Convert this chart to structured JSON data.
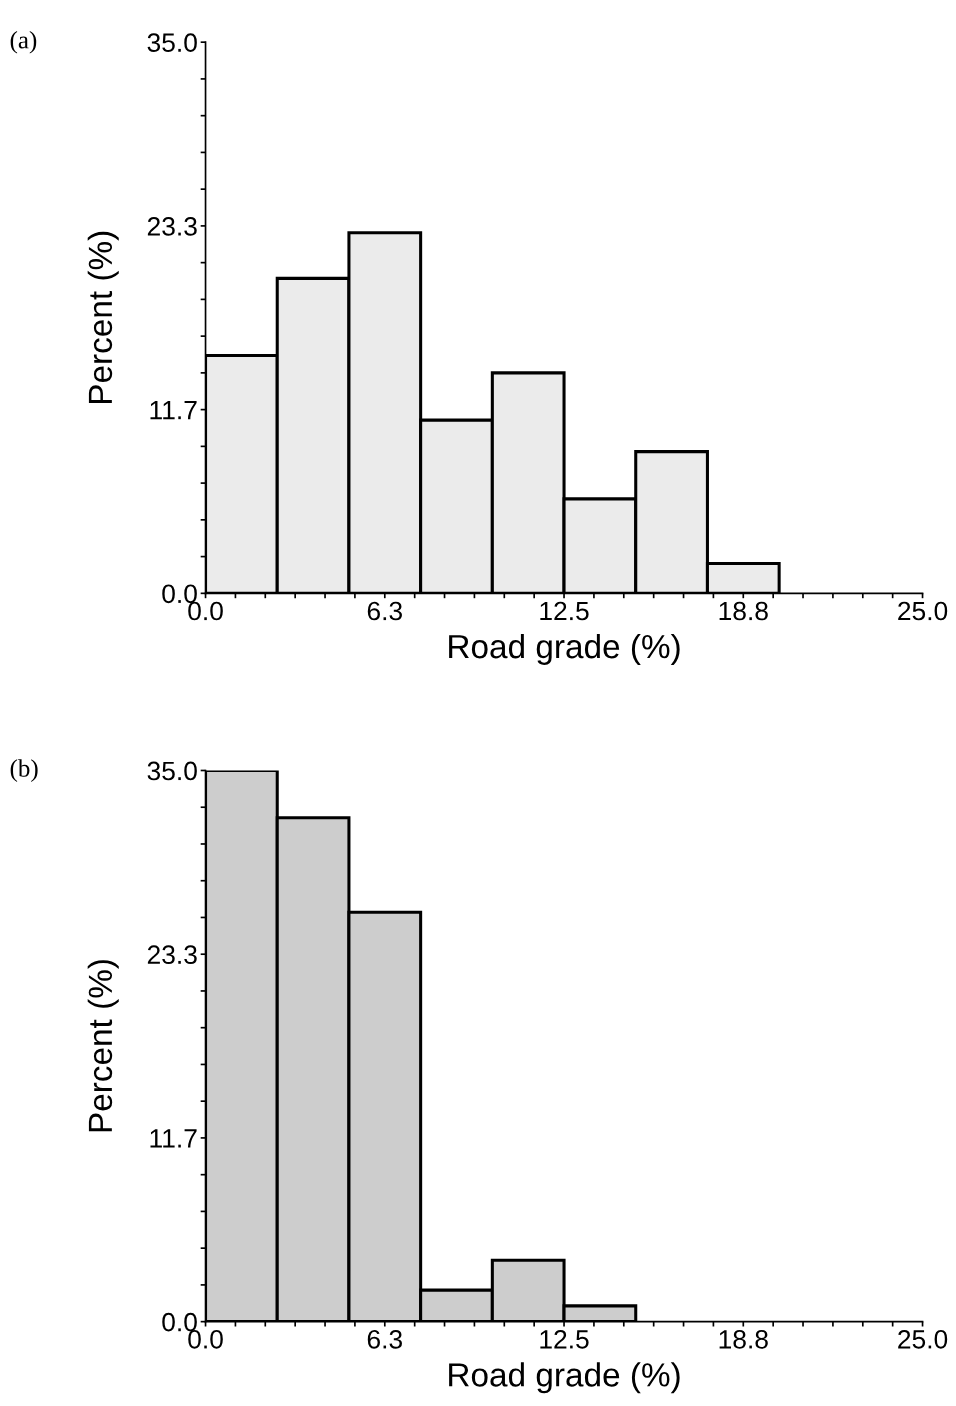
{
  "chart_data": [
    {
      "type": "histogram",
      "title": "(a)",
      "xlabel": "Road grade (%)",
      "ylabel": "Percent (%)",
      "color": "#ebebeb",
      "bins": [
        0,
        2.5,
        5,
        7.5,
        10,
        12.5,
        15,
        17.5,
        20,
        22.5,
        25
      ],
      "values": [
        15.1,
        20.0,
        22.9,
        11.0,
        14.0,
        6.0,
        9.0,
        1.9,
        0,
        0
      ],
      "xlim": [
        0,
        25
      ],
      "ylim": [
        0,
        35
      ],
      "xticks": [
        {
          "value": 0,
          "label": "0.0"
        },
        {
          "value": 1.042,
          "label": null
        },
        {
          "value": 2.083,
          "label": null
        },
        {
          "value": 3.125,
          "label": null
        },
        {
          "value": 4.167,
          "label": null
        },
        {
          "value": 5.208,
          "label": null
        },
        {
          "value": 6.25,
          "label": "6.3"
        },
        {
          "value": 7.292,
          "label": null
        },
        {
          "value": 8.333,
          "label": null
        },
        {
          "value": 9.375,
          "label": null
        },
        {
          "value": 10.417,
          "label": null
        },
        {
          "value": 11.458,
          "label": null
        },
        {
          "value": 12.5,
          "label": "12.5"
        },
        {
          "value": 13.542,
          "label": null
        },
        {
          "value": 14.583,
          "label": null
        },
        {
          "value": 15.625,
          "label": null
        },
        {
          "value": 16.667,
          "label": null
        },
        {
          "value": 17.708,
          "label": null
        },
        {
          "value": 18.75,
          "label": "18.8"
        },
        {
          "value": 19.792,
          "label": null
        },
        {
          "value": 20.833,
          "label": null
        },
        {
          "value": 21.875,
          "label": null
        },
        {
          "value": 22.917,
          "label": null
        },
        {
          "value": 23.958,
          "label": null
        },
        {
          "value": 25,
          "label": "25.0"
        }
      ],
      "yticks": [
        {
          "value": 0,
          "label": "0.0"
        },
        {
          "value": 2.333,
          "label": null
        },
        {
          "value": 4.667,
          "label": null
        },
        {
          "value": 7,
          "label": null
        },
        {
          "value": 9.333,
          "label": null
        },
        {
          "value": 11.667,
          "label": "11.7"
        },
        {
          "value": 14,
          "label": null
        },
        {
          "value": 16.333,
          "label": null
        },
        {
          "value": 18.667,
          "label": null
        },
        {
          "value": 21,
          "label": null
        },
        {
          "value": 23.333,
          "label": "23.3"
        },
        {
          "value": 25.667,
          "label": null
        },
        {
          "value": 28,
          "label": null
        },
        {
          "value": 30.333,
          "label": null
        },
        {
          "value": 32.667,
          "label": null
        },
        {
          "value": 35,
          "label": "35.0"
        }
      ],
      "grid": false
    },
    {
      "type": "histogram",
      "title": "(b)",
      "xlabel": "Road grade (%)",
      "ylabel": "Percent (%)",
      "color": "#cdcdcd",
      "bins": [
        0,
        2.5,
        5,
        7.5,
        10,
        12.5,
        15,
        17.5,
        20,
        22.5,
        25
      ],
      "values": [
        35.0,
        32.0,
        26.0,
        2.0,
        3.9,
        1.0,
        0,
        0,
        0,
        0
      ],
      "xlim": [
        0,
        25
      ],
      "ylim": [
        0,
        35
      ],
      "xticks": [
        {
          "value": 0,
          "label": "0.0"
        },
        {
          "value": 1.042,
          "label": null
        },
        {
          "value": 2.083,
          "label": null
        },
        {
          "value": 3.125,
          "label": null
        },
        {
          "value": 4.167,
          "label": null
        },
        {
          "value": 5.208,
          "label": null
        },
        {
          "value": 6.25,
          "label": "6.3"
        },
        {
          "value": 7.292,
          "label": null
        },
        {
          "value": 8.333,
          "label": null
        },
        {
          "value": 9.375,
          "label": null
        },
        {
          "value": 10.417,
          "label": null
        },
        {
          "value": 11.458,
          "label": null
        },
        {
          "value": 12.5,
          "label": "12.5"
        },
        {
          "value": 13.542,
          "label": null
        },
        {
          "value": 14.583,
          "label": null
        },
        {
          "value": 15.625,
          "label": null
        },
        {
          "value": 16.667,
          "label": null
        },
        {
          "value": 17.708,
          "label": null
        },
        {
          "value": 18.75,
          "label": "18.8"
        },
        {
          "value": 19.792,
          "label": null
        },
        {
          "value": 20.833,
          "label": null
        },
        {
          "value": 21.875,
          "label": null
        },
        {
          "value": 22.917,
          "label": null
        },
        {
          "value": 23.958,
          "label": null
        },
        {
          "value": 25,
          "label": "25.0"
        }
      ],
      "yticks": [
        {
          "value": 0,
          "label": "0.0"
        },
        {
          "value": 2.333,
          "label": null
        },
        {
          "value": 4.667,
          "label": null
        },
        {
          "value": 7,
          "label": null
        },
        {
          "value": 9.333,
          "label": null
        },
        {
          "value": 11.667,
          "label": "11.7"
        },
        {
          "value": 14,
          "label": null
        },
        {
          "value": 16.333,
          "label": null
        },
        {
          "value": 18.667,
          "label": null
        },
        {
          "value": 21,
          "label": null
        },
        {
          "value": 23.333,
          "label": "23.3"
        },
        {
          "value": 25.667,
          "label": null
        },
        {
          "value": 28,
          "label": null
        },
        {
          "value": 30.333,
          "label": null
        },
        {
          "value": 32.667,
          "label": null
        },
        {
          "value": 35,
          "label": "35.0"
        }
      ],
      "grid": false
    }
  ]
}
